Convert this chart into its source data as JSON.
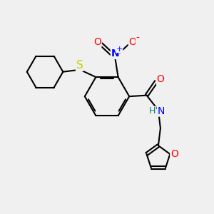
{
  "background_color": "#f0f0f0",
  "bond_color": "black",
  "bond_width": 1.5,
  "atom_colors": {
    "C": "black",
    "N": "blue",
    "O": "red",
    "S": "#cccc00",
    "H": "#008080"
  },
  "figsize": [
    3.0,
    3.0
  ],
  "dpi": 100,
  "xlim": [
    0,
    10
  ],
  "ylim": [
    0,
    10
  ]
}
